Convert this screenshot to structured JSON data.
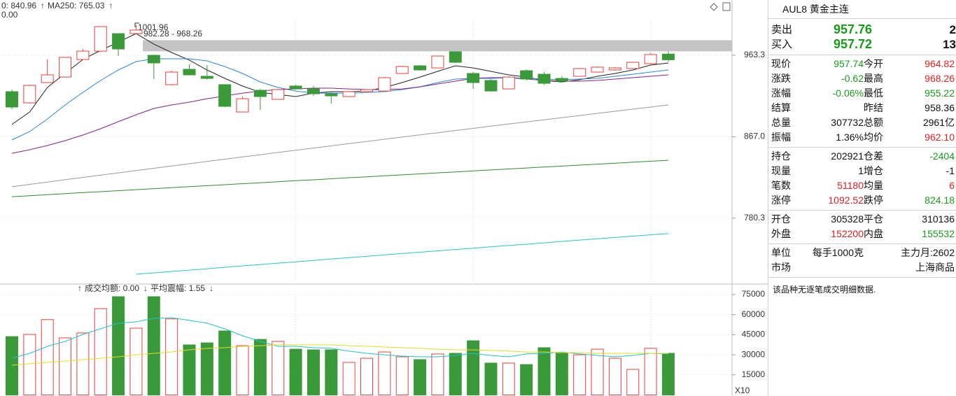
{
  "chart_data": [
    {
      "type": "candlestick",
      "header_labels": [
        {
          "text": "0: 840.96",
          "color": "#333333"
        },
        {
          "text": "↑",
          "color": "#e8403a"
        },
        {
          "text": "MA250: 765.03",
          "color": "#26b8c8"
        },
        {
          "text": "↑",
          "color": "#e8403a"
        }
      ],
      "sub_label": "0.00",
      "annotations": [
        {
          "text": "1001.96"
        }
      ],
      "price_band": {
        "range": [
          968.26,
          982.28
        ],
        "label": "982.28 - 968.26",
        "color": "#c4c4c4"
      },
      "log_scale": true,
      "ylim": [
        717.2,
        1034.7
      ],
      "yticks": [
        963.3,
        {
          "value": 867,
          "label": "867.0"
        },
        780.3
      ],
      "up_color": "#e8403a",
      "down_color": "#3a9a3a",
      "open": [
        919.0,
        905.8,
        929.9,
        936.6,
        958.1,
        968.5,
        990.7,
        990.7,
        963.3,
        927.4,
        946.0,
        937.5,
        927.4,
        895.2,
        920.7,
        909.9,
        925.7,
        922.3,
        916.5,
        913.2,
        919.0,
        919.8,
        940.9,
        950.3,
        947.7,
        967.7,
        940.9,
        932.4,
        922.3,
        944.3,
        940.0,
        934.9,
        937.5,
        942.6,
        945.2,
        946.9,
        952.9,
        964.82
      ],
      "high": [
        921.5,
        927.4,
        958.1,
        960.7,
        971.2,
        999.7,
        990.7,
        1001.96,
        964.2,
        944.3,
        952.0,
        951.2,
        927.4,
        913.2,
        922.3,
        922.3,
        927.4,
        925.7,
        919.0,
        919.8,
        922.3,
        936.6,
        950.3,
        951.2,
        962.4,
        967.7,
        942.6,
        934.1,
        937.5,
        946.0,
        942.6,
        937.5,
        947.7,
        949.4,
        948.6,
        954.6,
        965.9,
        968.26
      ],
      "low": [
        898.5,
        905.0,
        929.9,
        936.6,
        958.1,
        967.7,
        962.4,
        990.7,
        934.1,
        926.5,
        939.2,
        933.3,
        900.9,
        895.2,
        897.6,
        909.9,
        921.5,
        914.0,
        905.0,
        913.2,
        919.0,
        919.8,
        940.9,
        944.3,
        947.7,
        953.8,
        922.3,
        919.0,
        922.3,
        932.4,
        927.4,
        929.9,
        937.5,
        942.6,
        944.3,
        946.9,
        952.0,
        955.22
      ],
      "close": [
        900.9,
        926.5,
        939.2,
        960.7,
        968.5,
        999.7,
        971.2,
        995.2,
        953.8,
        942.6,
        939.2,
        934.9,
        901.7,
        910.7,
        913.2,
        921.5,
        922.3,
        916.5,
        914.0,
        919.0,
        921.5,
        935.8,
        949.4,
        945.2,
        962.4,
        954.6,
        929.9,
        919.8,
        936.6,
        934.1,
        929.0,
        931.6,
        946.9,
        948.6,
        947.7,
        954.6,
        964.2,
        957.74
      ],
      "series": [
        {
          "color": "#222222",
          "values": [
            880.8,
            895.2,
            924.0,
            941.0,
            958.1,
            969.4,
            979.8,
            990.7,
            977.3,
            966.8,
            957.3,
            945.2,
            935.0,
            925.7,
            918.2,
            915.7,
            913.2,
            917.3,
            919.0,
            919.0,
            919.8,
            924.0,
            929.9,
            936.6,
            943.5,
            950.3,
            947.7,
            943.5,
            939.2,
            936.6,
            932.4,
            930.7,
            933.3,
            937.5,
            940.9,
            945.2,
            951.2,
            953.8
          ]
        },
        {
          "color": "#2a86d6",
          "values": [
            863.4,
            872.8,
            887.1,
            903.4,
            918.2,
            932.4,
            945.2,
            955.5,
            959.0,
            959.0,
            959.0,
            956.4,
            949.4,
            940.9,
            930.7,
            924.0,
            919.8,
            917.3,
            917.3,
            917.3,
            918.2,
            919.0,
            921.5,
            924.8,
            929.9,
            934.1,
            935.0,
            935.0,
            935.8,
            935.0,
            934.1,
            933.3,
            934.1,
            935.0,
            937.5,
            940.0,
            942.6,
            945.2
          ]
        },
        {
          "color": "#8a1e8a",
          "values": [
            848.6,
            852.5,
            857.2,
            862.6,
            868.9,
            876.0,
            884.0,
            892.0,
            899.3,
            903.4,
            906.6,
            910.7,
            914.0,
            917.3,
            919.8,
            921.5,
            922.3,
            923.2,
            923.2,
            922.3,
            921.5,
            921.5,
            922.3,
            924.8,
            928.2,
            931.6,
            935.0,
            935.8,
            935.8,
            934.1,
            932.4,
            931.6,
            931.6,
            932.4,
            934.1,
            935.8,
            937.5,
            939.2
          ]
        },
        {
          "color": "#9a9a9a",
          "values": [
            812.7,
            815.2,
            817.6,
            820.1,
            822.5,
            825.0,
            827.4,
            829.9,
            832.3,
            834.8,
            837.2,
            839.7,
            842.1,
            844.6,
            847.0,
            849.5,
            851.9,
            854.4,
            856.8,
            859.3,
            861.7,
            864.2,
            866.6,
            869.1,
            871.5,
            874.0,
            876.4,
            878.9,
            881.3,
            883.8,
            886.2,
            888.7,
            891.1,
            893.6,
            896.0,
            898.5,
            900.9,
            903.4
          ]
        },
        {
          "color": "#2e8b2e",
          "values": [
            802.3,
            803.3,
            804.4,
            805.4,
            806.5,
            807.5,
            808.6,
            809.6,
            810.7,
            811.7,
            812.8,
            813.8,
            814.8,
            815.9,
            816.9,
            818.0,
            819.0,
            820.0,
            821.1,
            822.2,
            823.2,
            824.2,
            825.3,
            826.3,
            827.4,
            828.4,
            829.5,
            830.5,
            831.6,
            832.6,
            833.7,
            834.7,
            835.7,
            836.8,
            837.8,
            838.9,
            839.9,
            840.96
          ]
        },
        {
          "color": "#26c6c6",
          "values": [
            null,
            null,
            null,
            null,
            null,
            null,
            null,
            725.7,
            727.0,
            728.3,
            729.6,
            730.9,
            732.3,
            733.6,
            734.9,
            736.2,
            737.5,
            738.8,
            740.1,
            741.4,
            742.7,
            744.1,
            745.4,
            746.7,
            748.0,
            749.3,
            750.6,
            751.9,
            753.2,
            754.5,
            755.8,
            757.2,
            758.5,
            759.8,
            761.1,
            762.4,
            763.7,
            765.03
          ]
        }
      ]
    },
    {
      "type": "bar",
      "header_labels": [
        {
          "text": "↑",
          "color": "#e8403a"
        },
        {
          "text": "成交均额: 0.00",
          "color": "#c020b0"
        },
        {
          "text": "↓",
          "color": "#3a9a3a"
        },
        {
          "text": "平均震幅: 1.55",
          "color": "#c020b0"
        },
        {
          "text": "↓",
          "color": "#3a9a3a"
        }
      ],
      "axis_note": "X10",
      "ylim": [
        0,
        82300
      ],
      "yticks": [
        75000,
        60000,
        45000,
        30000,
        15000
      ],
      "values": [
        43600,
        45200,
        56300,
        42600,
        46300,
        64500,
        73400,
        49900,
        73400,
        56800,
        37400,
        38900,
        47800,
        36800,
        41500,
        40000,
        34200,
        33700,
        33700,
        24300,
        27400,
        32100,
        28500,
        26400,
        30600,
        31100,
        40500,
        23800,
        23800,
        22700,
        35300,
        31100,
        30000,
        34200,
        27400,
        19100,
        34800,
        31100
      ],
      "series": [
        {
          "color": "#22c0d0",
          "values": [
            27400,
            31100,
            36300,
            40000,
            45200,
            49400,
            53600,
            54600,
            57200,
            57700,
            55700,
            53600,
            49400,
            44200,
            40000,
            36300,
            36300,
            35300,
            34800,
            32700,
            31100,
            30000,
            29000,
            28500,
            28500,
            29500,
            31100,
            29500,
            28500,
            30600,
            31100,
            32100,
            30600,
            29500,
            28500,
            29500,
            31100,
            30600
          ]
        },
        {
          "color": "#e6dc20",
          "values": [
            22200,
            23300,
            24300,
            25300,
            26400,
            27400,
            28500,
            30000,
            31100,
            32100,
            33700,
            34800,
            35300,
            36300,
            36800,
            37400,
            37400,
            37400,
            37400,
            36800,
            36300,
            35800,
            35300,
            34800,
            34200,
            33700,
            33700,
            33200,
            32700,
            32100,
            32100,
            31600,
            31600,
            31100,
            31100,
            31100,
            31100,
            31100
          ]
        }
      ]
    }
  ],
  "quote_panel": {
    "title": "AUL8 黄金主连",
    "orders": [
      {
        "label": "卖出",
        "price": "957.76",
        "size": "2",
        "color": "#1a9a1a"
      },
      {
        "label": "买入",
        "price": "957.72",
        "size": "13",
        "color": "#1a9a1a"
      }
    ],
    "sections": [
      [
        [
          {
            "label": "现价",
            "value": "957.74",
            "color": "#1a9a1a"
          },
          {
            "label": "今开",
            "value": "964.82",
            "color": "#e02020"
          }
        ],
        [
          {
            "label": "涨跌",
            "value": "-0.62",
            "color": "#1a9a1a"
          },
          {
            "label": "最高",
            "value": "968.26",
            "color": "#e02020"
          }
        ],
        [
          {
            "label": "涨幅",
            "value": "-0.06%",
            "color": "#1a9a1a"
          },
          {
            "label": "最低",
            "value": "955.22",
            "color": "#1a9a1a"
          }
        ],
        [
          {
            "label": "结算"
          },
          {
            "label": "昨结",
            "value": "958.36",
            "color": "#111111"
          }
        ],
        [
          {
            "label": "总量",
            "value": "307732",
            "color": "#111111"
          },
          {
            "label": "总额",
            "value": "2961亿",
            "color": "#111111"
          }
        ],
        [
          {
            "label": "振幅",
            "value": "1.36%",
            "color": "#111111"
          },
          {
            "label": "均价",
            "value": "962.10",
            "color": "#e02020"
          }
        ]
      ],
      [
        [
          {
            "label": "持仓",
            "value": "202921",
            "color": "#111111"
          },
          {
            "label": "仓差",
            "value": "-2404",
            "color": "#1a9a1a"
          }
        ],
        [
          {
            "label": "现量",
            "value": "1",
            "color": "#111111"
          },
          {
            "label": "增仓",
            "value": "-1",
            "color": "#111111"
          }
        ],
        [
          {
            "label": "笔数",
            "value": "51180",
            "color": "#e02020"
          },
          {
            "label": "均量",
            "value": "6",
            "color": "#e02020"
          }
        ],
        [
          {
            "label": "涨停",
            "value": "1092.52",
            "color": "#e02020"
          },
          {
            "label": "跌停",
            "value": "824.18",
            "color": "#1a9a1a"
          }
        ]
      ],
      [
        [
          {
            "label": "开仓",
            "value": "305328",
            "color": "#111111"
          },
          {
            "label": "平仓",
            "value": "310136",
            "color": "#111111"
          }
        ],
        [
          {
            "label": "外盘",
            "value": "152200",
            "color": "#e02020"
          },
          {
            "label": "内盘",
            "value": "155532",
            "color": "#1a9a1a"
          }
        ]
      ],
      [
        [
          {
            "label": "单位",
            "value": "每手1000克",
            "color": "#111111"
          },
          {
            "value": "主力月:2602",
            "color": "#111111"
          }
        ],
        [
          {
            "label": "市场",
            "value": "上海商品",
            "color": "#111111"
          }
        ]
      ]
    ],
    "note": "该品种无逐笔成交明细数据."
  }
}
